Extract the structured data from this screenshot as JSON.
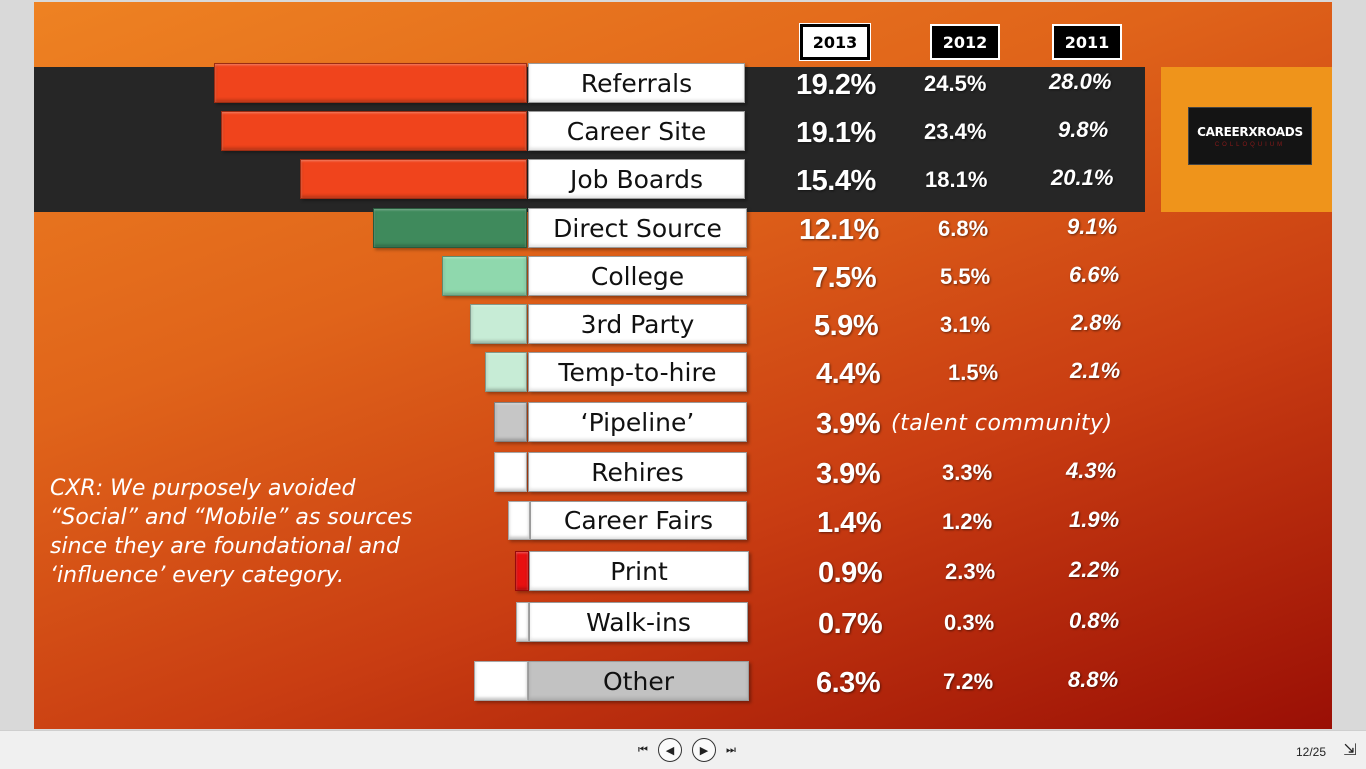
{
  "years": [
    "2013",
    "2012",
    "2011"
  ],
  "sources": [
    {
      "label": "Referrals",
      "v2013": "19.2%",
      "v2012": "24.5%",
      "v2011": "28.0%",
      "color": "#f0441c"
    },
    {
      "label": "Career Site",
      "v2013": "19.1%",
      "v2012": "23.4%",
      "v2011": "9.8%",
      "color": "#f0441c"
    },
    {
      "label": "Job Boards",
      "v2013": "15.4%",
      "v2012": "18.1%",
      "v2011": "20.1%",
      "color": "#f0441c"
    },
    {
      "label": "Direct Source",
      "v2013": "12.1%",
      "v2012": "6.8%",
      "v2011": "9.1%",
      "color": "#3f8a5c"
    },
    {
      "label": "College",
      "v2013": "7.5%",
      "v2012": "5.5%",
      "v2011": "6.6%",
      "color": "#8fd8ad"
    },
    {
      "label": "3rd Party",
      "v2013": "5.9%",
      "v2012": "3.1%",
      "v2011": "2.8%",
      "color": "#c7ecd6"
    },
    {
      "label": "Temp-to-hire",
      "v2013": "4.4%",
      "v2012": "1.5%",
      "v2011": "2.1%",
      "color": "#c7ecd6"
    },
    {
      "label": "‘Pipeline’",
      "v2013": "3.9%",
      "v2012": "",
      "v2011": "",
      "color": "#c6c6c6"
    },
    {
      "label": "Rehires",
      "v2013": "3.9%",
      "v2012": "3.3%",
      "v2011": "4.3%",
      "color": "#ffffff"
    },
    {
      "label": "Career Fairs",
      "v2013": "1.4%",
      "v2012": "1.2%",
      "v2011": "1.9%",
      "color": "#ffffff"
    },
    {
      "label": "Print",
      "v2013": "0.9%",
      "v2012": "2.3%",
      "v2011": "2.2%",
      "color": "#e81010"
    },
    {
      "label": "Walk-ins",
      "v2013": "0.7%",
      "v2012": "0.3%",
      "v2011": "0.8%",
      "color": "#ffffff"
    },
    {
      "label": "Other",
      "v2013": "6.3%",
      "v2012": "7.2%",
      "v2011": "8.8%",
      "color": "#ffffff"
    }
  ],
  "pipeline_note": "(talent community)",
  "note_lines": [
    "CXR: We purposely avoided",
    "“Social” and “Mobile” as sources",
    "since they are foundational and",
    "‘influence’ every category."
  ],
  "logo": {
    "text": "CAREERXROADS",
    "sub": "COLLOQUIUM"
  },
  "controls": {
    "page": "12/25"
  }
}
